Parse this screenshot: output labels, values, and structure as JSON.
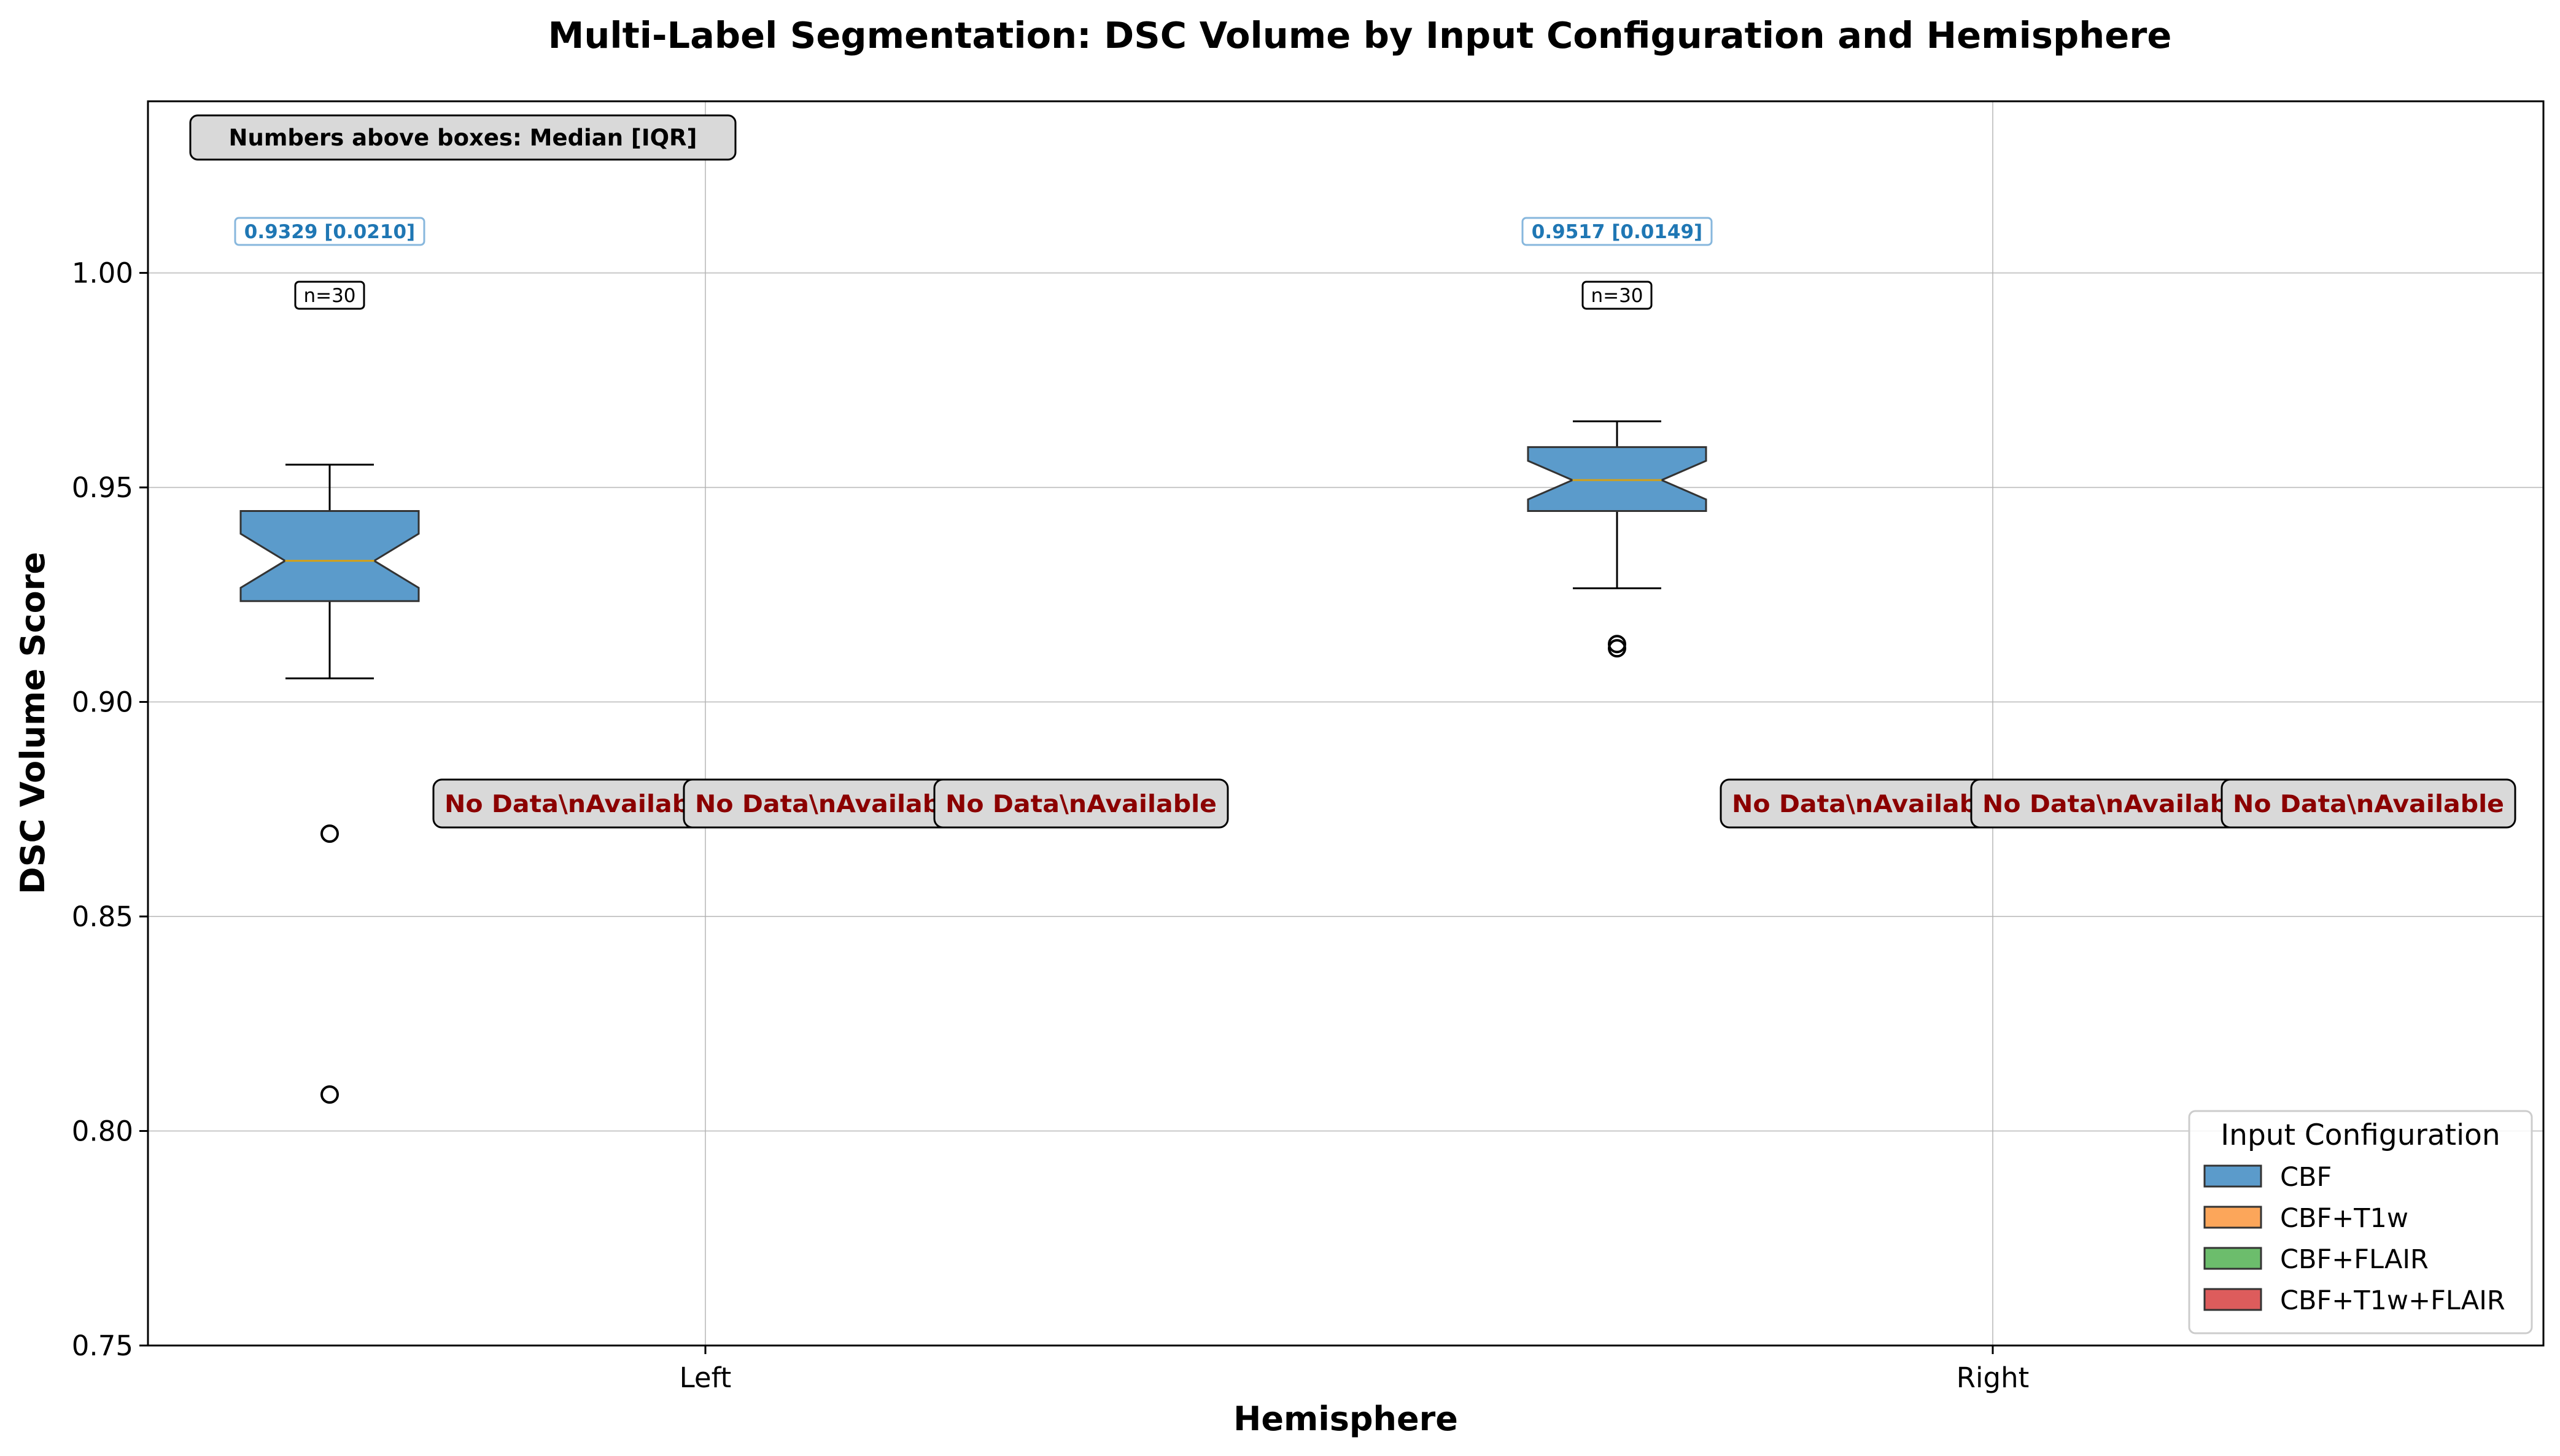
{
  "chart_data": {
    "type": "box",
    "title": "Multi-Label Segmentation: DSC Volume by Input Configuration and Hemisphere",
    "xlabel": "Hemisphere",
    "ylabel": "DSC Volume Score",
    "categories": [
      "Left",
      "Right"
    ],
    "ylim": [
      0.75,
      1.04
    ],
    "yticks": [
      0.75,
      0.8,
      0.85,
      0.9,
      0.95,
      1.0
    ],
    "ytick_labels": [
      "0.75",
      "0.80",
      "0.85",
      "0.90",
      "0.95",
      "1.00"
    ],
    "grid": true,
    "note": "Numbers above boxes: Median [IQR]",
    "no_data_label": "No Data\\nAvailable",
    "legend": {
      "title": "Input Configuration",
      "placement": "lower-right",
      "entries": [
        {
          "name": "CBF",
          "color": "#5b9bcb"
        },
        {
          "name": "CBF+T1w",
          "color": "#fca65a"
        },
        {
          "name": "CBF+FLAIR",
          "color": "#6cbd6c"
        },
        {
          "name": "CBF+T1w+FLAIR",
          "color": "#dd5c5c"
        }
      ]
    },
    "series": [
      {
        "name": "CBF",
        "color": "#5b9bcb",
        "label_color": "#1f77b4",
        "boxes": [
          {
            "category": "Left",
            "q1": 0.9235,
            "median": 0.9329,
            "q3": 0.9445,
            "whisker_low": 0.9055,
            "whisker_high": 0.9553,
            "notch_low": 0.9266,
            "notch_high": 0.9392,
            "outliers": [
              0.8693,
              0.8085
            ],
            "label": "0.9329 [0.0210]",
            "n_label": "n=30"
          },
          {
            "category": "Right",
            "q1": 0.9445,
            "median": 0.9517,
            "q3": 0.9594,
            "whisker_low": 0.9265,
            "whisker_high": 0.9654,
            "notch_low": 0.9472,
            "notch_high": 0.9562,
            "outliers": [
              0.9125,
              0.9135
            ],
            "label": "0.9517 [0.0149]",
            "n_label": "n=30"
          }
        ]
      },
      {
        "name": "CBF+T1w",
        "color": "#fca65a",
        "boxes": []
      },
      {
        "name": "CBF+FLAIR",
        "color": "#6cbd6c",
        "boxes": []
      },
      {
        "name": "CBF+T1w+FLAIR",
        "color": "#dd5c5c",
        "boxes": []
      }
    ]
  }
}
